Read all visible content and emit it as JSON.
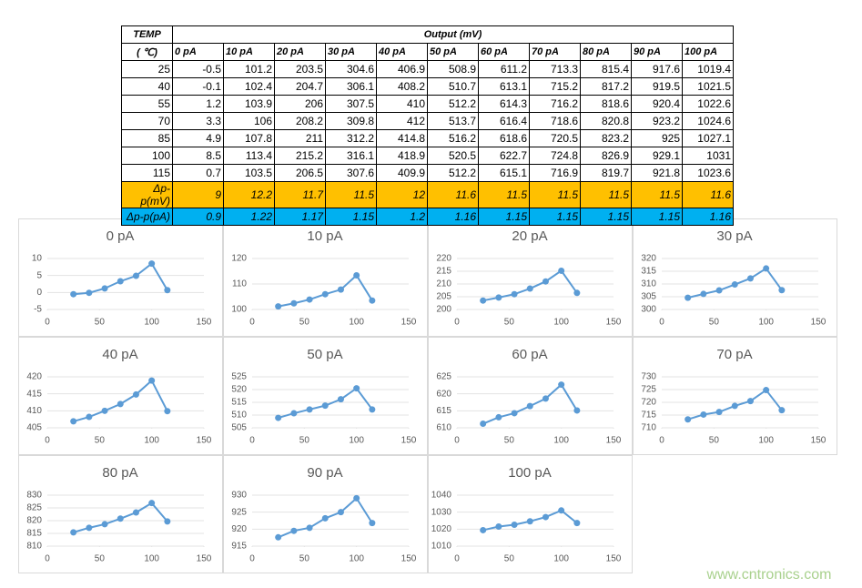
{
  "table": {
    "header": {
      "temp": "TEMP",
      "unit": "( ℃)",
      "output": "Output (mV)",
      "columns": [
        "0 pA",
        "10 pA",
        "20 pA",
        "30 pA",
        "40 pA",
        "50 pA",
        "60 pA",
        "70 pA",
        "80 pA",
        "90 pA",
        "100 pA"
      ]
    },
    "rows": [
      [
        25,
        -0.5,
        101.2,
        203.5,
        304.6,
        406.9,
        508.9,
        611.2,
        713.3,
        815.4,
        917.6,
        1019.4
      ],
      [
        40,
        -0.1,
        102.4,
        204.7,
        306.1,
        408.2,
        510.7,
        613.1,
        715.2,
        817.2,
        919.5,
        1021.5
      ],
      [
        55,
        1.2,
        103.9,
        206,
        307.5,
        410,
        512.2,
        614.3,
        716.2,
        818.6,
        920.4,
        1022.6
      ],
      [
        70,
        3.3,
        106,
        208.2,
        309.8,
        412,
        513.7,
        616.4,
        718.6,
        820.8,
        923.2,
        1024.6
      ],
      [
        85,
        4.9,
        107.8,
        211,
        312.2,
        414.8,
        516.2,
        618.6,
        720.5,
        823.2,
        925,
        1027.1
      ],
      [
        100,
        8.5,
        113.4,
        215.2,
        316.1,
        418.9,
        520.5,
        622.7,
        724.8,
        826.9,
        929.1,
        1031
      ],
      [
        115,
        0.7,
        103.5,
        206.5,
        307.6,
        409.9,
        512.2,
        615.1,
        716.9,
        819.7,
        921.8,
        1023.6
      ]
    ],
    "delta_mv": {
      "label": "Δp-p(mV)",
      "values": [
        9,
        12.2,
        11.7,
        11.5,
        12,
        11.6,
        11.5,
        11.5,
        11.5,
        11.5,
        11.6
      ]
    },
    "delta_pa": {
      "label": "Δp-p(pA)",
      "values": [
        0.9,
        1.22,
        1.17,
        1.15,
        1.2,
        1.16,
        1.15,
        1.15,
        1.15,
        1.15,
        1.16
      ]
    }
  },
  "chart_data": [
    {
      "type": "line",
      "title": "0 pA",
      "x": [
        25,
        40,
        55,
        70,
        85,
        100,
        115
      ],
      "values": [
        -0.5,
        -0.1,
        1.2,
        3.3,
        4.9,
        8.5,
        0.7
      ],
      "color": "#5b9bd5",
      "xlim": [
        0,
        150
      ],
      "xticks": [
        0,
        50,
        100,
        150
      ],
      "ylim": [
        -5,
        10
      ],
      "yticks": [
        -5,
        0,
        5,
        10
      ],
      "grid": true
    },
    {
      "type": "line",
      "title": "10 pA",
      "x": [
        25,
        40,
        55,
        70,
        85,
        100,
        115
      ],
      "values": [
        101.2,
        102.4,
        103.9,
        106,
        107.8,
        113.4,
        103.5
      ],
      "color": "#5b9bd5",
      "xlim": [
        0,
        150
      ],
      "xticks": [
        0,
        50,
        100,
        150
      ],
      "ylim": [
        100,
        120
      ],
      "yticks": [
        100,
        110,
        120
      ],
      "grid": true
    },
    {
      "type": "line",
      "title": "20 pA",
      "x": [
        25,
        40,
        55,
        70,
        85,
        100,
        115
      ],
      "values": [
        203.5,
        204.7,
        206,
        208.2,
        211,
        215.2,
        206.5
      ],
      "color": "#5b9bd5",
      "xlim": [
        0,
        150
      ],
      "xticks": [
        0,
        50,
        100,
        150
      ],
      "ylim": [
        200,
        220
      ],
      "yticks": [
        200,
        205,
        210,
        215,
        220
      ],
      "grid": true
    },
    {
      "type": "line",
      "title": "30 pA",
      "x": [
        25,
        40,
        55,
        70,
        85,
        100,
        115
      ],
      "values": [
        304.6,
        306.1,
        307.5,
        309.8,
        312.2,
        316.1,
        307.6
      ],
      "color": "#5b9bd5",
      "xlim": [
        0,
        150
      ],
      "xticks": [
        0,
        50,
        100,
        150
      ],
      "ylim": [
        300,
        320
      ],
      "yticks": [
        300,
        305,
        310,
        315,
        320
      ],
      "grid": true
    },
    {
      "type": "line",
      "title": "40 pA",
      "x": [
        25,
        40,
        55,
        70,
        85,
        100,
        115
      ],
      "values": [
        406.9,
        408.2,
        410,
        412,
        414.8,
        418.9,
        409.9
      ],
      "color": "#5b9bd5",
      "xlim": [
        0,
        150
      ],
      "xticks": [
        0,
        50,
        100,
        150
      ],
      "ylim": [
        405,
        420
      ],
      "yticks": [
        405,
        410,
        415,
        420
      ],
      "grid": true
    },
    {
      "type": "line",
      "title": "50 pA",
      "x": [
        25,
        40,
        55,
        70,
        85,
        100,
        115
      ],
      "values": [
        508.9,
        510.7,
        512.2,
        513.7,
        516.2,
        520.5,
        512.2
      ],
      "color": "#5b9bd5",
      "xlim": [
        0,
        150
      ],
      "xticks": [
        0,
        50,
        100,
        150
      ],
      "ylim": [
        505,
        525
      ],
      "yticks": [
        505,
        510,
        515,
        520,
        525
      ],
      "grid": true
    },
    {
      "type": "line",
      "title": "60 pA",
      "x": [
        25,
        40,
        55,
        70,
        85,
        100,
        115
      ],
      "values": [
        611.2,
        613.1,
        614.3,
        616.4,
        618.6,
        622.7,
        615.1
      ],
      "color": "#5b9bd5",
      "xlim": [
        0,
        150
      ],
      "xticks": [
        0,
        50,
        100,
        150
      ],
      "ylim": [
        610,
        625
      ],
      "yticks": [
        610,
        615,
        620,
        625
      ],
      "grid": true
    },
    {
      "type": "line",
      "title": "70 pA",
      "x": [
        25,
        40,
        55,
        70,
        85,
        100,
        115
      ],
      "values": [
        713.3,
        715.2,
        716.2,
        718.6,
        720.5,
        724.8,
        716.9
      ],
      "color": "#5b9bd5",
      "xlim": [
        0,
        150
      ],
      "xticks": [
        0,
        50,
        100,
        150
      ],
      "ylim": [
        710,
        730
      ],
      "yticks": [
        710,
        715,
        720,
        725,
        730
      ],
      "grid": true
    },
    {
      "type": "line",
      "title": "80 pA",
      "x": [
        25,
        40,
        55,
        70,
        85,
        100,
        115
      ],
      "values": [
        815.4,
        817.2,
        818.6,
        820.8,
        823.2,
        826.9,
        819.7
      ],
      "color": "#5b9bd5",
      "xlim": [
        0,
        150
      ],
      "xticks": [
        0,
        50,
        100,
        150
      ],
      "ylim": [
        810,
        830
      ],
      "yticks": [
        810,
        815,
        820,
        825,
        830
      ],
      "grid": true
    },
    {
      "type": "line",
      "title": "90 pA",
      "x": [
        25,
        40,
        55,
        70,
        85,
        100,
        115
      ],
      "values": [
        917.6,
        919.5,
        920.4,
        923.2,
        925,
        929.1,
        921.8
      ],
      "color": "#5b9bd5",
      "xlim": [
        0,
        150
      ],
      "xticks": [
        0,
        50,
        100,
        150
      ],
      "ylim": [
        915,
        930
      ],
      "yticks": [
        915,
        920,
        925,
        930
      ],
      "grid": true
    },
    {
      "type": "line",
      "title": "100 pA",
      "x": [
        25,
        40,
        55,
        70,
        85,
        100,
        115
      ],
      "values": [
        1019.4,
        1021.5,
        1022.6,
        1024.6,
        1027.1,
        1031,
        1023.6
      ],
      "color": "#5b9bd5",
      "xlim": [
        0,
        150
      ],
      "xticks": [
        0,
        50,
        100,
        150
      ],
      "ylim": [
        1010,
        1040
      ],
      "yticks": [
        1010,
        1020,
        1030,
        1040
      ],
      "grid": true
    }
  ],
  "watermark": "www.cntronics.com"
}
